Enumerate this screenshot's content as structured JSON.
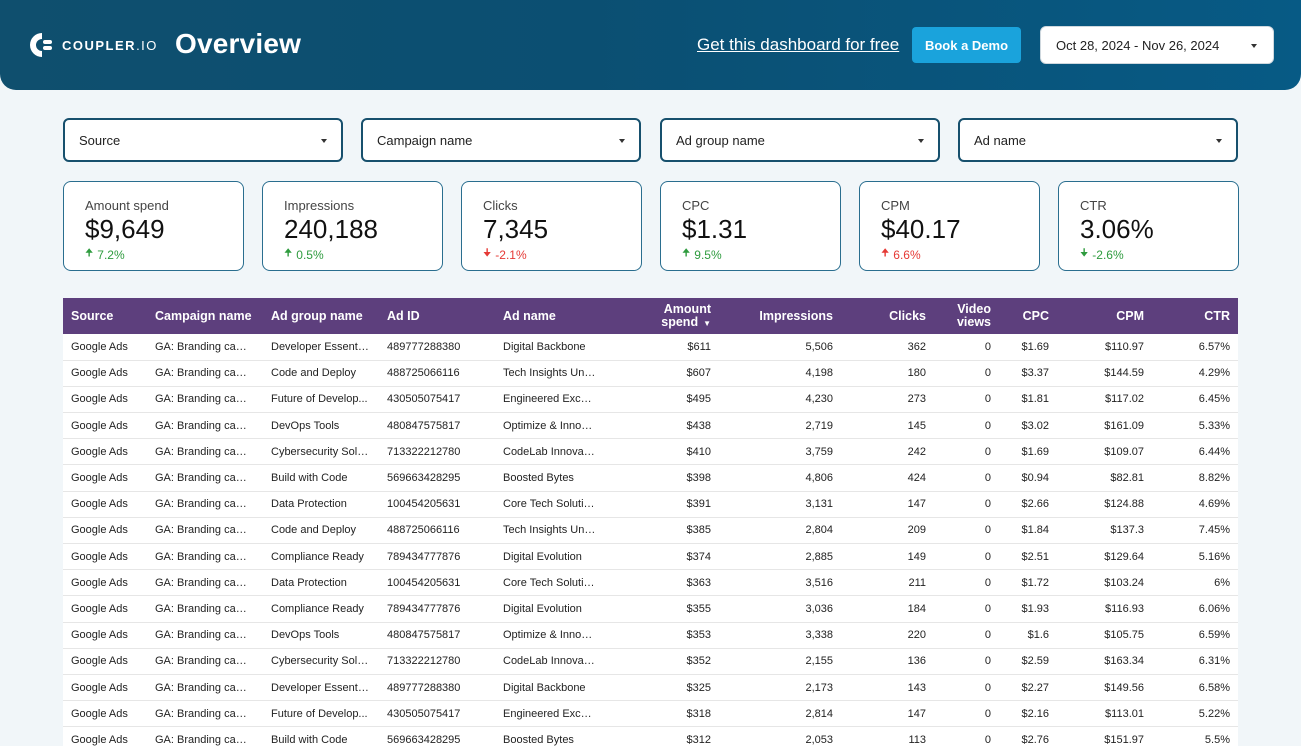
{
  "header": {
    "logo_text": "COUPLER",
    "logo_suffix": ".IO",
    "title": "Overview",
    "free_link": "Get this dashboard for free",
    "demo_button": "Book a Demo",
    "date_range": "Oct 28, 2024 - Nov 26, 2024",
    "colors": {
      "header_bg": "#0b4f72",
      "button_bg": "#1aa3dc"
    }
  },
  "filters": [
    "Source",
    "Campaign name",
    "Ad group name",
    "Ad name"
  ],
  "kpis": [
    {
      "label": "Amount spend",
      "value": "$9,649",
      "delta": "7.2%",
      "direction": "up",
      "color": "#2e9b3e"
    },
    {
      "label": "Impressions",
      "value": "240,188",
      "delta": "0.5%",
      "direction": "up",
      "color": "#2e9b3e"
    },
    {
      "label": "Clicks",
      "value": "7,345",
      "delta": "-2.1%",
      "direction": "down",
      "color": "#e53935"
    },
    {
      "label": "CPC",
      "value": "$1.31",
      "delta": "9.5%",
      "direction": "up",
      "color": "#2e9b3e"
    },
    {
      "label": "CPM",
      "value": "$40.17",
      "delta": "6.6%",
      "direction": "up",
      "color": "#e53935"
    },
    {
      "label": "CTR",
      "value": "3.06%",
      "delta": "-2.6%",
      "direction": "down",
      "color": "#2e9b3e"
    }
  ],
  "table": {
    "header_color": "#5d3f7d",
    "columns": [
      "Source",
      "Campaign name",
      "Ad group name",
      "Ad ID",
      "Ad name",
      "Amount spend",
      "Impressions",
      "Clicks",
      "Video views",
      "CPC",
      "CPM",
      "CTR"
    ],
    "sorted_column": "Amount spend",
    "rows": [
      [
        "Google Ads",
        "GA: Branding camp...",
        "Developer Essentials",
        "489777288380",
        "Digital Backbone",
        "$611",
        "5,506",
        "362",
        "0",
        "$1.69",
        "$110.97",
        "6.57%"
      ],
      [
        "Google Ads",
        "GA: Branding camp...",
        "Code and Deploy",
        "488725066116",
        "Tech Insights Unle...",
        "$607",
        "4,198",
        "180",
        "0",
        "$3.37",
        "$144.59",
        "4.29%"
      ],
      [
        "Google Ads",
        "GA: Branding camp...",
        "Future of Develop...",
        "430505075417",
        "Engineered Excelle...",
        "$495",
        "4,230",
        "273",
        "0",
        "$1.81",
        "$117.02",
        "6.45%"
      ],
      [
        "Google Ads",
        "GA: Branding camp...",
        "DevOps Tools",
        "480847575817",
        "Optimize & Innovate",
        "$438",
        "2,719",
        "145",
        "0",
        "$3.02",
        "$161.09",
        "5.33%"
      ],
      [
        "Google Ads",
        "GA: Branding camp...",
        "Cybersecurity Solut...",
        "713322212780",
        "CodeLab Innovatio...",
        "$410",
        "3,759",
        "242",
        "0",
        "$1.69",
        "$109.07",
        "6.44%"
      ],
      [
        "Google Ads",
        "GA: Branding camp...",
        "Build with Code",
        "569663428295",
        "Boosted Bytes",
        "$398",
        "4,806",
        "424",
        "0",
        "$0.94",
        "$82.81",
        "8.82%"
      ],
      [
        "Google Ads",
        "GA: Branding camp...",
        "Data Protection",
        "100454205631",
        "Core Tech Solutions",
        "$391",
        "3,131",
        "147",
        "0",
        "$2.66",
        "$124.88",
        "4.69%"
      ],
      [
        "Google Ads",
        "GA: Branding camp...",
        "Code and Deploy",
        "488725066116",
        "Tech Insights Unle...",
        "$385",
        "2,804",
        "209",
        "0",
        "$1.84",
        "$137.3",
        "7.45%"
      ],
      [
        "Google Ads",
        "GA: Branding camp...",
        "Compliance Ready",
        "789434777876",
        "Digital Evolution",
        "$374",
        "2,885",
        "149",
        "0",
        "$2.51",
        "$129.64",
        "5.16%"
      ],
      [
        "Google Ads",
        "GA: Branding camp...",
        "Data Protection",
        "100454205631",
        "Core Tech Solutions",
        "$363",
        "3,516",
        "211",
        "0",
        "$1.72",
        "$103.24",
        "6%"
      ],
      [
        "Google Ads",
        "GA: Branding camp...",
        "Compliance Ready",
        "789434777876",
        "Digital Evolution",
        "$355",
        "3,036",
        "184",
        "0",
        "$1.93",
        "$116.93",
        "6.06%"
      ],
      [
        "Google Ads",
        "GA: Branding camp...",
        "DevOps Tools",
        "480847575817",
        "Optimize & Innovate",
        "$353",
        "3,338",
        "220",
        "0",
        "$1.6",
        "$105.75",
        "6.59%"
      ],
      [
        "Google Ads",
        "GA: Branding camp...",
        "Cybersecurity Solut...",
        "713322212780",
        "CodeLab Innovatio...",
        "$352",
        "2,155",
        "136",
        "0",
        "$2.59",
        "$163.34",
        "6.31%"
      ],
      [
        "Google Ads",
        "GA: Branding camp...",
        "Developer Essentials",
        "489777288380",
        "Digital Backbone",
        "$325",
        "2,173",
        "143",
        "0",
        "$2.27",
        "$149.56",
        "6.58%"
      ],
      [
        "Google Ads",
        "GA: Branding camp...",
        "Future of Develop...",
        "430505075417",
        "Engineered Excelle...",
        "$318",
        "2,814",
        "147",
        "0",
        "$2.16",
        "$113.01",
        "5.22%"
      ],
      [
        "Google Ads",
        "GA: Branding camp...",
        "Build with Code",
        "569663428295",
        "Boosted Bytes",
        "$312",
        "2,053",
        "113",
        "0",
        "$2.76",
        "$151.97",
        "5.5%"
      ]
    ]
  }
}
